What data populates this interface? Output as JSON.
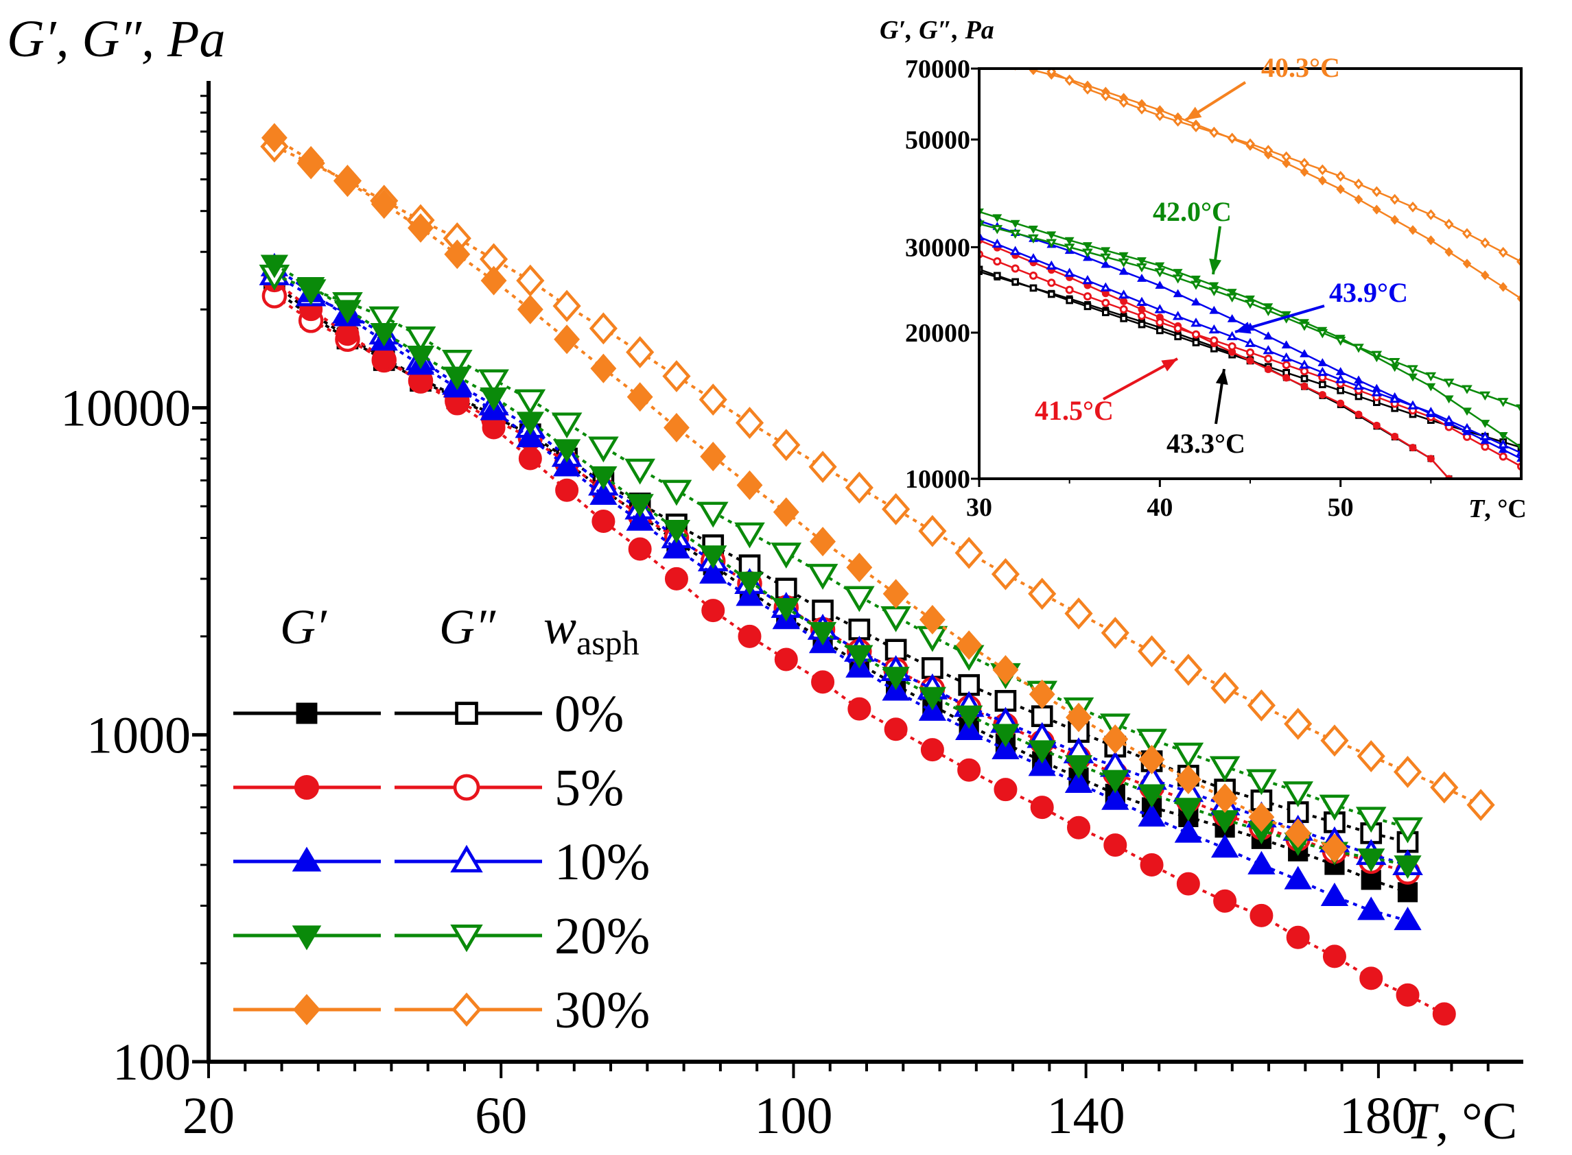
{
  "chart_data": [
    {
      "id": "main",
      "type": "scatter",
      "y_scale": "log",
      "xlim": [
        20,
        200
      ],
      "ylim": [
        100,
        100000
      ],
      "x_ticks": [
        20,
        60,
        100,
        140,
        180
      ],
      "y_ticks": [
        100,
        1000,
        10000
      ],
      "ylabel": "G′, G″, Pa",
      "xlabel_var": "T",
      "xlabel_unit": ", °C",
      "legend_headers": {
        "gp": "G′",
        "gpp": "G″",
        "w": "w",
        "w_sub": "asph"
      },
      "series": [
        {
          "label": "0%",
          "color": "#000000",
          "gp": {
            "start": 29,
            "step": 5,
            "values": [
              24000,
              19500,
              16500,
              14200,
              12300,
              10800,
              9500,
              8200,
              6800,
              5600,
              4700,
              3900,
              3300,
              2750,
              2300,
              1950,
              1650,
              1420,
              1230,
              1070,
              940,
              830,
              740,
              660,
              600,
              560,
              520,
              480,
              440,
              400,
              360,
              330
            ]
          },
          "gpp": {
            "start": 29,
            "step": 5,
            "values": [
              23000,
              19000,
              16300,
              14000,
              12100,
              10700,
              9400,
              8300,
              7000,
              5900,
              5100,
              4400,
              3800,
              3300,
              2800,
              2400,
              2100,
              1820,
              1600,
              1420,
              1270,
              1140,
              1020,
              920,
              830,
              750,
              680,
              630,
              580,
              540,
              500,
              470
            ]
          }
        },
        {
          "label": "5%",
          "color": "#e8141c",
          "gp": {
            "start": 29,
            "step": 5,
            "values": [
              24500,
              20000,
              16800,
              14200,
              12000,
              10300,
              8700,
              7000,
              5600,
              4500,
              3700,
              3000,
              2400,
              2000,
              1700,
              1450,
              1200,
              1040,
              900,
              780,
              680,
              600,
              520,
              460,
              400,
              350,
              310,
              280,
              240,
              210,
              180,
              160,
              140
            ]
          },
          "gpp": {
            "start": 29,
            "step": 5,
            "values": [
              22000,
              18500,
              16200,
              14000,
              12100,
              10500,
              9200,
              8100,
              6800,
              5600,
              4700,
              4000,
              3400,
              2900,
              2450,
              2100,
              1800,
              1580,
              1380,
              1210,
              1070,
              950,
              850,
              760,
              690,
              630,
              570,
              520,
              480,
              440,
              410,
              380
            ]
          }
        },
        {
          "label": "10%",
          "color": "#0000ee",
          "gp": {
            "start": 29,
            "step": 5,
            "values": [
              27000,
              22500,
              19000,
              16000,
              13500,
              11500,
              9800,
              8100,
              6600,
              5400,
              4500,
              3700,
              3100,
              2650,
              2250,
              1900,
              1600,
              1360,
              1180,
              1030,
              900,
              800,
              710,
              630,
              560,
              500,
              450,
              400,
              360,
              320,
              290,
              270
            ]
          },
          "gpp": {
            "start": 29,
            "step": 5,
            "values": [
              25500,
              22000,
              19500,
              16800,
              14000,
              11800,
              10200,
              8700,
              7100,
              5800,
              4900,
              4000,
              3400,
              2900,
              2450,
              2100,
              1800,
              1570,
              1380,
              1220,
              1090,
              980,
              880,
              800,
              730,
              670,
              610,
              560,
              510,
              470,
              430,
              400
            ]
          }
        },
        {
          "label": "20%",
          "color": "#0a8a0a",
          "gp": {
            "start": 29,
            "step": 5,
            "values": [
              27500,
              23500,
              20000,
              17000,
              14500,
              12500,
              10800,
              9100,
              7500,
              6200,
              5100,
              4250,
              3550,
              2950,
              2450,
              2070,
              1760,
              1510,
              1310,
              1150,
              1010,
              900,
              810,
              730,
              660,
              600,
              550,
              510,
              470,
              440,
              420,
              400
            ]
          },
          "gpp": {
            "start": 29,
            "step": 5,
            "values": [
              25500,
              23000,
              21000,
              19000,
              16500,
              14000,
              12200,
              10600,
              9000,
              7600,
              6500,
              5600,
              4800,
              4150,
              3600,
              3100,
              2650,
              2300,
              2000,
              1750,
              1540,
              1360,
              1210,
              1080,
              970,
              880,
              800,
              730,
              670,
              610,
              560,
              520
            ]
          }
        },
        {
          "label": "30%",
          "color": "#f58220",
          "gp": {
            "start": 29,
            "step": 5,
            "values": [
              67000,
              57000,
              49000,
              42000,
              35500,
              29500,
              24500,
              20000,
              16200,
              13200,
              10800,
              8700,
              7100,
              5800,
              4800,
              3900,
              3250,
              2700,
              2250,
              1880,
              1580,
              1330,
              1130,
              970,
              840,
              730,
              640,
              560,
              500,
              450
            ]
          },
          "gpp": {
            "start": 29,
            "step": 5,
            "values": [
              63000,
              56000,
              49500,
              43000,
              37500,
              33000,
              28500,
              24500,
              20500,
              17500,
              14800,
              12500,
              10600,
              9000,
              7700,
              6600,
              5700,
              4900,
              4200,
              3600,
              3100,
              2700,
              2350,
              2050,
              1800,
              1580,
              1390,
              1230,
              1080,
              960,
              860,
              770,
              690,
              610
            ]
          }
        }
      ]
    },
    {
      "id": "inset",
      "type": "line",
      "y_scale": "log",
      "xlim": [
        30,
        60
      ],
      "ylim": [
        10000,
        70000
      ],
      "x_ticks": [
        30,
        40,
        50
      ],
      "y_ticks": [
        10000,
        20000,
        30000,
        50000,
        70000
      ],
      "ylabel": "G′, G″, Pa",
      "xlabel_var": "T",
      "xlabel_unit": ", °C",
      "series": [
        {
          "name": "0% G′",
          "color": "#000000",
          "marker": "filled-square",
          "points": [
            [
              30,
              26700
            ],
            [
              35,
              23500
            ],
            [
              40,
              20500
            ],
            [
              45,
              17600
            ],
            [
              50,
              14200
            ],
            [
              55,
              11000
            ],
            [
              56,
              10000
            ]
          ]
        },
        {
          "name": "0% G″",
          "color": "#000000",
          "marker": "open-square",
          "points": [
            [
              30,
              27000
            ],
            [
              35,
              23300
            ],
            [
              40,
              20200
            ],
            [
              45,
              17500
            ],
            [
              50,
              15200
            ],
            [
              55,
              13200
            ],
            [
              60,
              11600
            ]
          ]
        },
        {
          "name": "5% G′",
          "color": "#e8141c",
          "marker": "filled-circle",
          "points": [
            [
              30,
              31000
            ],
            [
              35,
              26000
            ],
            [
              40,
              21500
            ],
            [
              45,
              17500
            ],
            [
              50,
              14300
            ],
            [
              55,
              11000
            ],
            [
              56,
              10000
            ]
          ]
        },
        {
          "name": "5% G″",
          "color": "#e8141c",
          "marker": "open-circle",
          "points": [
            [
              30,
              29000
            ],
            [
              35,
              24500
            ],
            [
              40,
              21000
            ],
            [
              45,
              18200
            ],
            [
              50,
              15700
            ],
            [
              55,
              13400
            ],
            [
              60,
              10600
            ]
          ]
        },
        {
          "name": "10% G′",
          "color": "#0000ee",
          "marker": "filled-triangle",
          "points": [
            [
              30,
              34000
            ],
            [
              35,
              29500
            ],
            [
              40,
              25000
            ],
            [
              45,
              20500
            ],
            [
              50,
              16600
            ],
            [
              55,
              13600
            ],
            [
              60,
              11000
            ]
          ]
        },
        {
          "name": "10% G″",
          "color": "#0000ee",
          "marker": "open-triangle",
          "points": [
            [
              30,
              31500
            ],
            [
              35,
              26500
            ],
            [
              40,
              22300
            ],
            [
              45,
              19000
            ],
            [
              50,
              16000
            ],
            [
              55,
              13700
            ],
            [
              60,
              11300
            ]
          ]
        },
        {
          "name": "20% G′",
          "color": "#0a8a0a",
          "marker": "filled-down-triangle",
          "points": [
            [
              30,
              35500
            ],
            [
              35,
              31000
            ],
            [
              40,
              27500
            ],
            [
              45,
              23500
            ],
            [
              50,
              19500
            ],
            [
              55,
              15500
            ],
            [
              60,
              11600
            ]
          ]
        },
        {
          "name": "20% G″",
          "color": "#0a8a0a",
          "marker": "open-down-triangle",
          "points": [
            [
              30,
              33500
            ],
            [
              35,
              30000
            ],
            [
              40,
              26700
            ],
            [
              45,
              23000
            ],
            [
              50,
              19300
            ],
            [
              55,
              16300
            ],
            [
              60,
              14000
            ]
          ]
        },
        {
          "name": "30% G′",
          "color": "#f58220",
          "marker": "filled-diamond",
          "points": [
            [
              32,
              71000
            ],
            [
              35,
              66500
            ],
            [
              40,
              57500
            ],
            [
              45,
              48500
            ],
            [
              50,
              39500
            ],
            [
              55,
              31000
            ],
            [
              60,
              23500
            ]
          ]
        },
        {
          "name": "30% G″",
          "color": "#f58220",
          "marker": "open-diamond",
          "points": [
            [
              34,
              69000
            ],
            [
              36,
              63500
            ],
            [
              40,
              56000
            ],
            [
              45,
              49000
            ],
            [
              50,
              42000
            ],
            [
              55,
              35000
            ],
            [
              60,
              28000
            ]
          ]
        }
      ],
      "annotations": [
        {
          "text": "40.3°C",
          "color": "#f58220",
          "x": 40.3
        },
        {
          "text": "42.0°C",
          "color": "#0a8a0a",
          "x": 42.0
        },
        {
          "text": "43.9°C",
          "color": "#0000ee",
          "x": 43.9
        },
        {
          "text": "41.5°C",
          "color": "#e8141c",
          "x": 41.5
        },
        {
          "text": "43.3°C",
          "color": "#000000",
          "x": 43.3
        }
      ]
    }
  ]
}
